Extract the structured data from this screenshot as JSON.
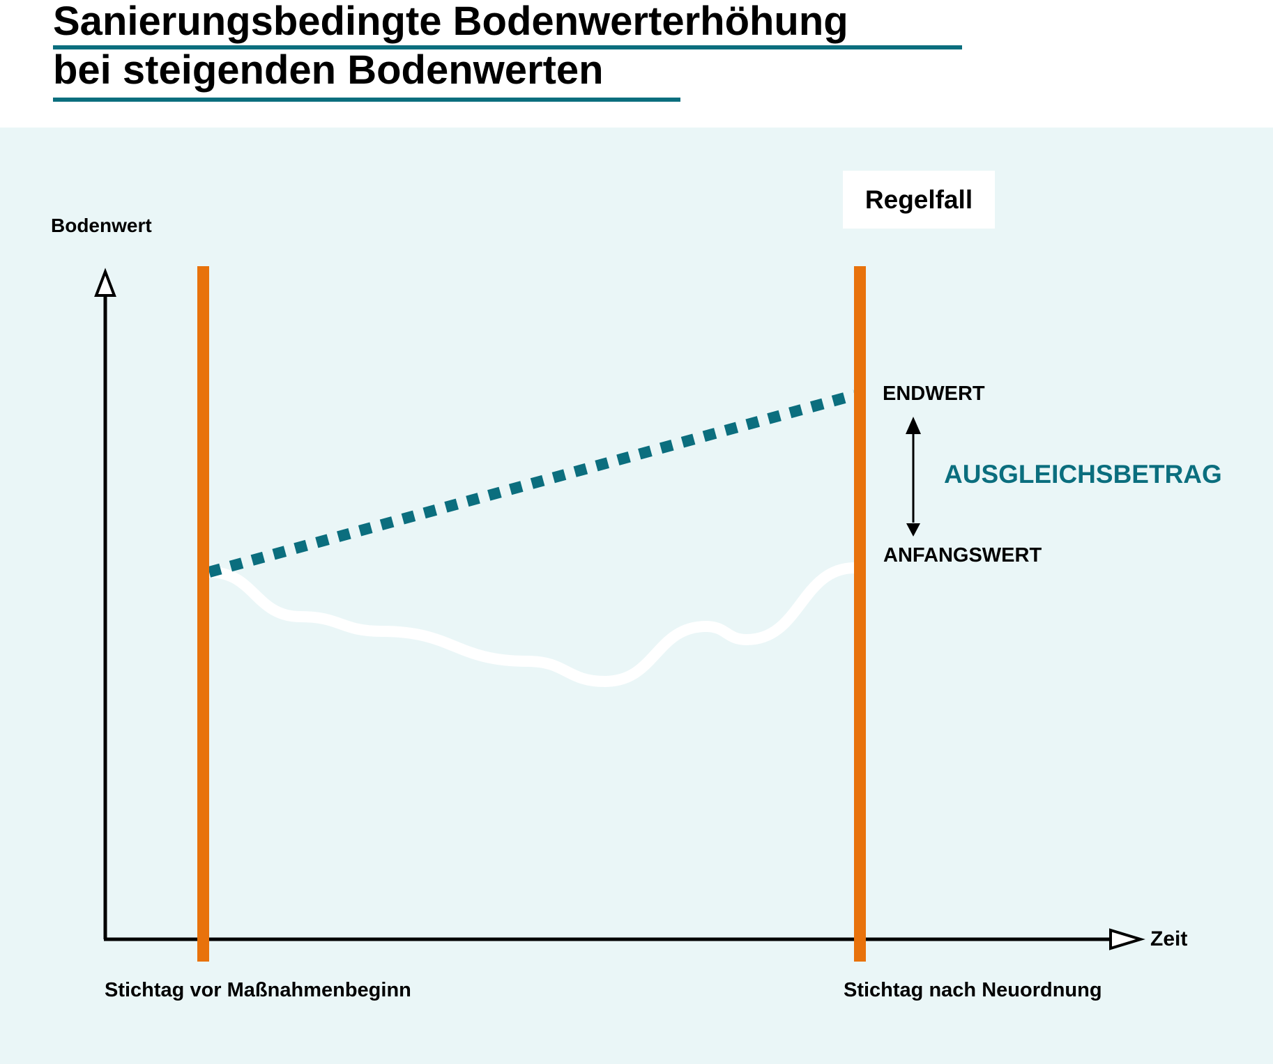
{
  "title": {
    "line1": "Sanierungsbedingte Bodenwerterhöhung",
    "line2": "bei steigenden Bodenwerten"
  },
  "case_label": "Regelfall",
  "axes": {
    "y_label": "Bodenwert",
    "x_label": "Zeit"
  },
  "markers": {
    "start": "Stichtag vor Maßnahmenbeginn",
    "end": "Stichtag nach Neuordnung"
  },
  "annotations": {
    "end_value": "ENDWERT",
    "start_value": "ANFANGSWERT",
    "difference": "AUSGLEICHSBETRAG"
  },
  "colors": {
    "accent_teal": "#0b6e7e",
    "marker_orange": "#e8720c",
    "background": "#eaf6f7",
    "actual_curve": "#ffffff"
  }
}
